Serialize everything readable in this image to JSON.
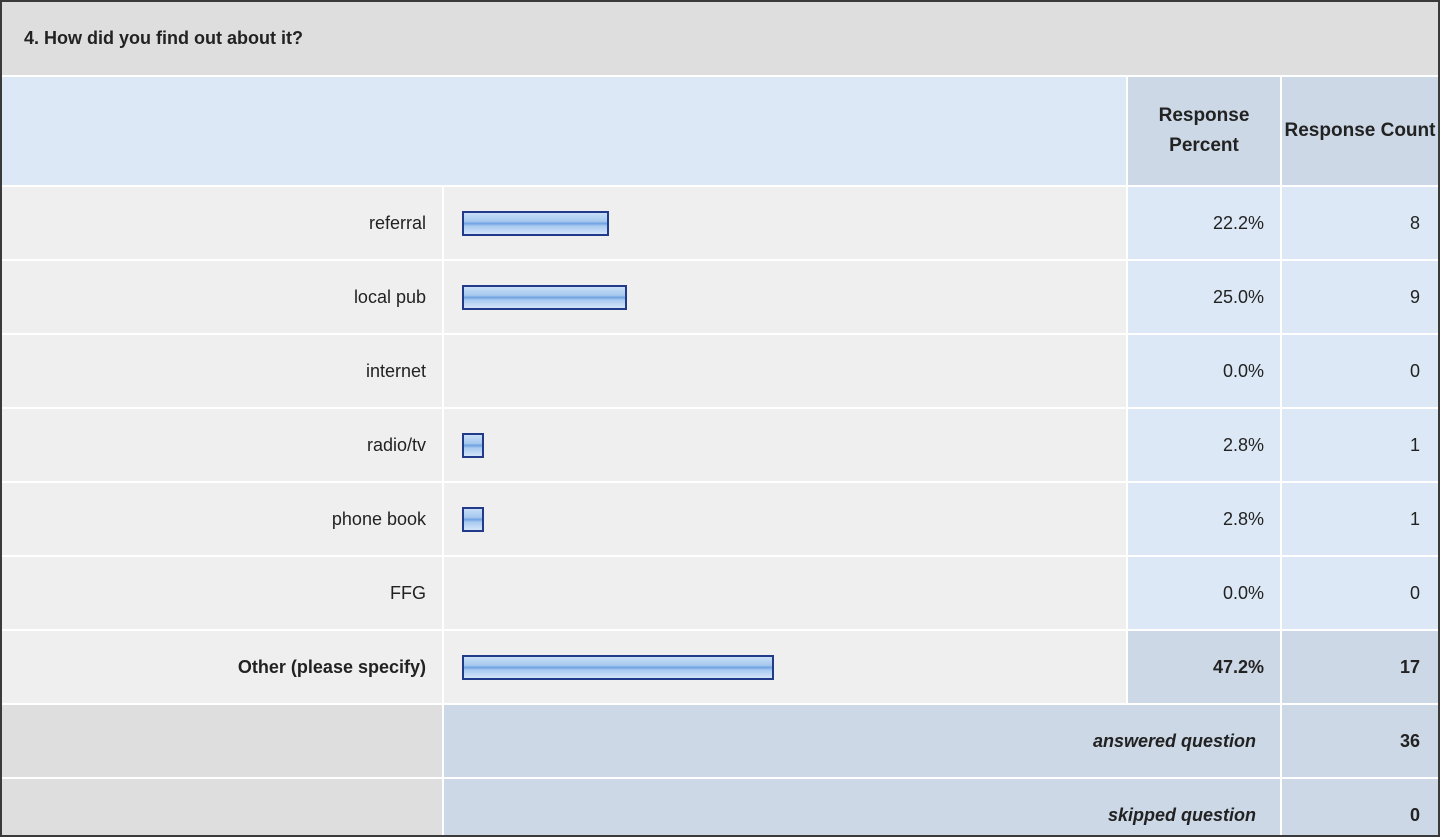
{
  "question": {
    "title": "4. How did you find out about it?"
  },
  "header": {
    "percent_label": "Response Percent",
    "count_label": "Response Count"
  },
  "rows": [
    {
      "label": "referral",
      "percent": "22.2%",
      "count": "8",
      "fraction": 0.222
    },
    {
      "label": "local pub",
      "percent": "25.0%",
      "count": "9",
      "fraction": 0.25
    },
    {
      "label": "internet",
      "percent": "0.0%",
      "count": "0",
      "fraction": 0
    },
    {
      "label": "radio/tv",
      "percent": "2.8%",
      "count": "1",
      "fraction": 0.028
    },
    {
      "label": "phone book",
      "percent": "2.8%",
      "count": "1",
      "fraction": 0.028
    },
    {
      "label": "FFG",
      "percent": "0.0%",
      "count": "0",
      "fraction": 0
    },
    {
      "label": "Other (please specify)",
      "percent": "47.2%",
      "count": "17",
      "fraction": 0.472
    }
  ],
  "footer": {
    "answered_label": "answered question",
    "answered_count": "36",
    "skipped_label": "skipped question",
    "skipped_count": "0"
  },
  "colors": {
    "bar_border": "#223a8a",
    "bar_fill": "#a6c8ef",
    "header_bg": "#ccd8e6",
    "light_bg": "#dce8f5"
  }
}
